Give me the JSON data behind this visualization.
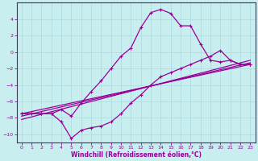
{
  "xlabel": "Windchill (Refroidissement éolien,°C)",
  "background_color": "#c8eef0",
  "grid_color": "#b0dde0",
  "line_color": "#990099",
  "xlim": [
    -0.5,
    23.5
  ],
  "ylim": [
    -11,
    6
  ],
  "xticks": [
    0,
    1,
    2,
    3,
    4,
    5,
    6,
    7,
    8,
    9,
    10,
    11,
    12,
    13,
    14,
    15,
    16,
    17,
    18,
    19,
    20,
    21,
    22,
    23
  ],
  "yticks": [
    -10,
    -8,
    -6,
    -4,
    -2,
    0,
    2,
    4
  ],
  "curve1_x": [
    0,
    1,
    2,
    3,
    4,
    5,
    6,
    7,
    8,
    9,
    10,
    11,
    12,
    13,
    14,
    15,
    16,
    17,
    18,
    19,
    20,
    21,
    22,
    23
  ],
  "curve1_y": [
    -7.5,
    -7.5,
    -7.5,
    -7.5,
    -7.0,
    -7.8,
    -6.2,
    -4.8,
    -3.5,
    -2.0,
    -0.5,
    0.5,
    3.0,
    4.8,
    5.2,
    4.7,
    3.2,
    3.2,
    1.0,
    -1.0,
    -1.2,
    -1.0,
    -1.5,
    -1.5
  ],
  "curve2_x": [
    0,
    1,
    2,
    3,
    4,
    5,
    6,
    7,
    8,
    9,
    10,
    11,
    12,
    13,
    14,
    15,
    16,
    17,
    18,
    19,
    20,
    21,
    22,
    23
  ],
  "curve2_y": [
    -7.5,
    -7.5,
    -7.5,
    -7.5,
    -8.5,
    -10.5,
    -9.5,
    -9.2,
    -9.0,
    -8.5,
    -7.5,
    -6.2,
    -5.2,
    -4.0,
    -3.0,
    -2.5,
    -2.0,
    -1.5,
    -1.0,
    -0.5,
    0.2,
    -1.0,
    -1.5,
    -1.5
  ],
  "line1_x": [
    0,
    23
  ],
  "line1_y": [
    -7.5,
    -1.5
  ],
  "line2_x": [
    0,
    23
  ],
  "line2_y": [
    -7.8,
    -1.3
  ],
  "line3_x": [
    0,
    23
  ],
  "line3_y": [
    -8.2,
    -1.0
  ]
}
